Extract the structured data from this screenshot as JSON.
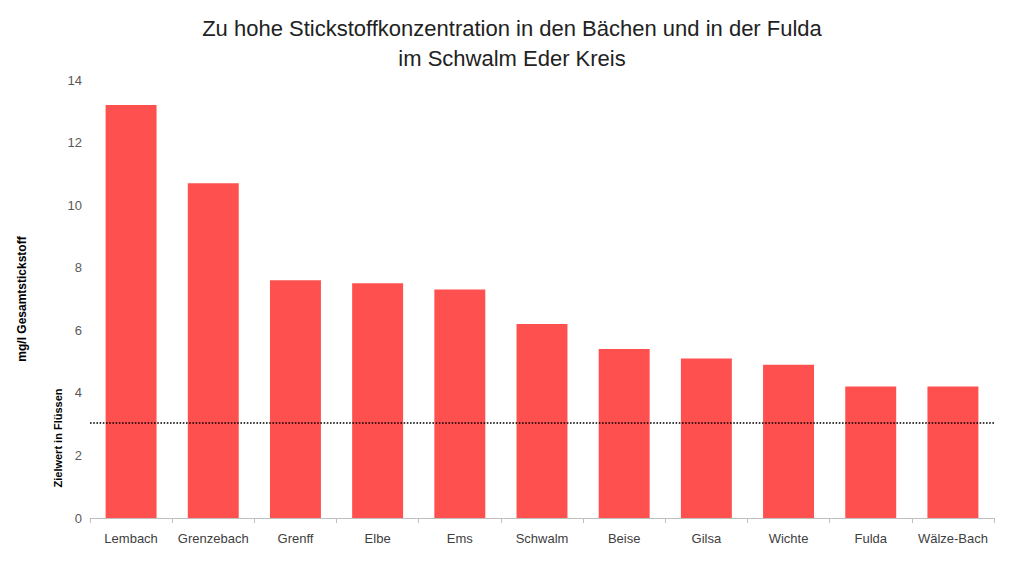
{
  "chart_data": {
    "type": "bar",
    "title": "Zu hohe Stickstoffkonzentration in den Bächen und in der Fulda\nim Schwalm Eder Kreis",
    "y_label": "mg/l Gesamtstickstoff",
    "categories": [
      "Lembach",
      "Grenzebach",
      "Grenff",
      "Elbe",
      "Ems",
      "Schwalm",
      "Beise",
      "Gilsa",
      "Wichte",
      "Fulda",
      "Wälze-Bach"
    ],
    "values": [
      13.2,
      10.7,
      7.6,
      7.5,
      7.3,
      6.2,
      5.4,
      5.1,
      4.9,
      4.2,
      4.2
    ],
    "color": "#ff5050",
    "ylim": [
      0,
      14
    ],
    "yticks": [
      0,
      2,
      4,
      6,
      8,
      10,
      12,
      14
    ],
    "grid": false,
    "annotations": [
      {
        "text": "Zielwert in Flüssen",
        "y": 3.05
      }
    ]
  }
}
